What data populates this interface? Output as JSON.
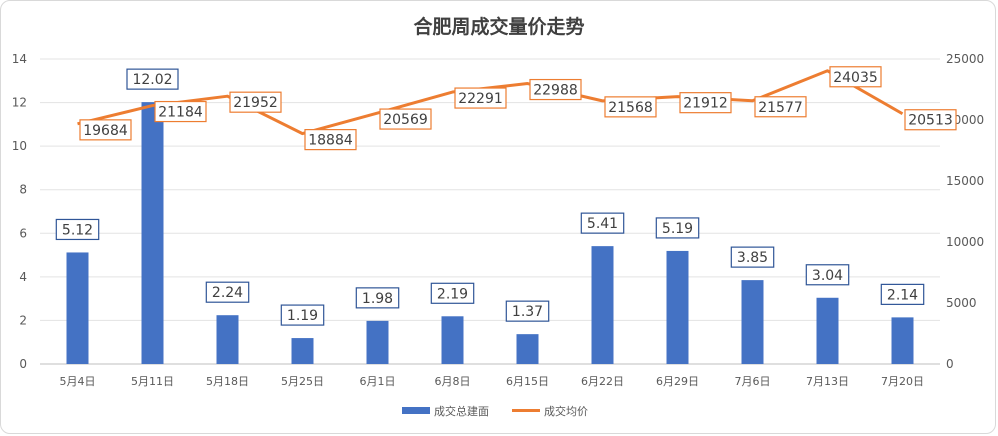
{
  "chart_data": {
    "type": "bar+line",
    "title": "合肥周成交量价走势",
    "categories": [
      "5月4日",
      "5月11日",
      "5月18日",
      "5月25日",
      "6月1日",
      "6月8日",
      "6月15日",
      "6月22日",
      "6月29日",
      "7月6日",
      "7月13日",
      "7月20日"
    ],
    "series": [
      {
        "name": "成交总建面",
        "type": "bar",
        "axis": "left",
        "color": "#4472C4",
        "values": [
          5.12,
          12.02,
          2.24,
          1.19,
          1.98,
          2.19,
          1.37,
          5.41,
          5.19,
          3.85,
          3.04,
          2.14
        ],
        "labels": [
          "5.12",
          "12.02",
          "2.24",
          "1.19",
          "1.98",
          "2.19",
          "1.37",
          "5.41",
          "5.19",
          "3.85",
          "3.04",
          "2.14"
        ]
      },
      {
        "name": "成交均价",
        "type": "line",
        "axis": "right",
        "color": "#ED7D31",
        "values": [
          19684,
          21184,
          21952,
          18884,
          20569,
          22291,
          22988,
          21568,
          21912,
          21577,
          24035,
          20513
        ],
        "labels": [
          "19684",
          "21184",
          "21952",
          "18884",
          "20569",
          "22291",
          "22988",
          "21568",
          "21912",
          "21577",
          "24035",
          "20513"
        ]
      }
    ],
    "y_left": {
      "min": 0,
      "max": 14,
      "ticks": [
        "0",
        "2",
        "4",
        "6",
        "8",
        "10",
        "12",
        "14"
      ]
    },
    "y_right": {
      "min": 0,
      "max": 25000,
      "ticks": [
        "0",
        "5000",
        "10000",
        "15000",
        "20000",
        "25000"
      ]
    },
    "grid": true,
    "legend_position": "bottom-center"
  }
}
